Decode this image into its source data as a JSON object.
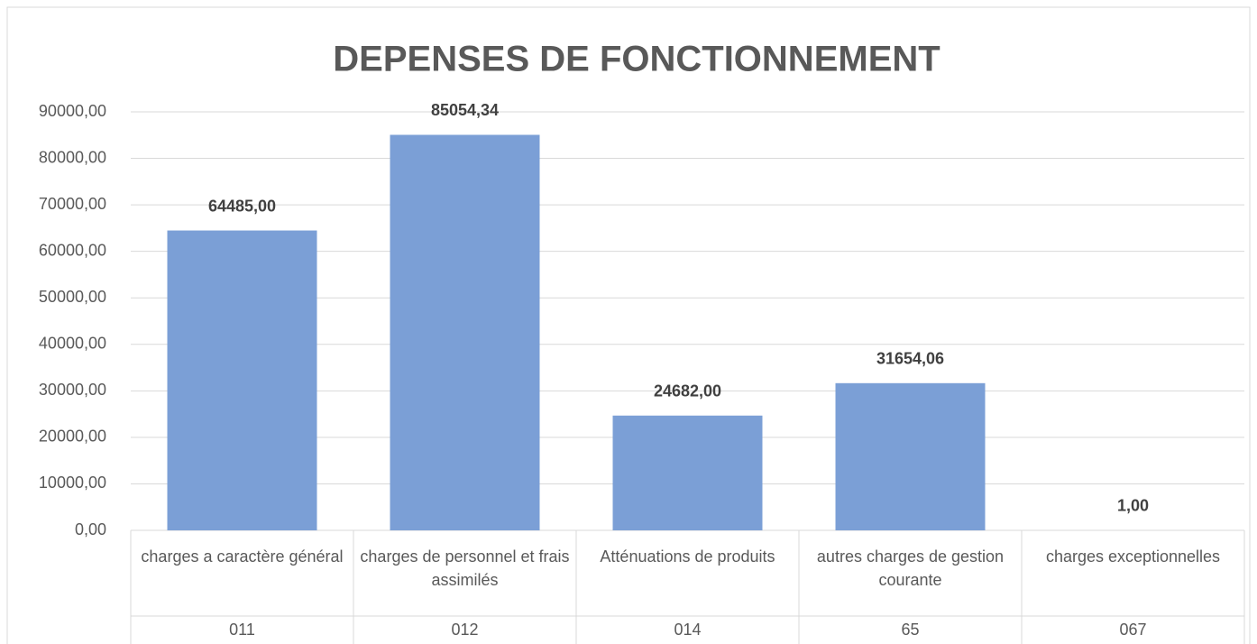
{
  "chart_data": {
    "type": "bar",
    "title": "DEPENSES DE FONCTIONNEMENT",
    "categories": [
      "charges a caractère général",
      "charges de personnel et frais assimilés",
      "Atténuations de produits",
      "autres charges de gestion courante",
      "charges exceptionnelles"
    ],
    "category_codes": [
      "011",
      "012",
      "014",
      "65",
      "067"
    ],
    "values": [
      64485,
      85054.34,
      24682,
      31654.06,
      1
    ],
    "value_labels": [
      "64485,00",
      "85054,34",
      "24682,00",
      "31654,06",
      "1,00"
    ],
    "color": "#7b9fd6",
    "ylim": [
      0,
      90000
    ],
    "yticks": [
      {
        "value": 0,
        "label": "0,00"
      },
      {
        "value": 10000,
        "label": "10000,00"
      },
      {
        "value": 20000,
        "label": "20000,00"
      },
      {
        "value": 30000,
        "label": "30000,00"
      },
      {
        "value": 40000,
        "label": "40000,00"
      },
      {
        "value": 50000,
        "label": "50000,00"
      },
      {
        "value": 60000,
        "label": "60000,00"
      },
      {
        "value": 70000,
        "label": "70000,00"
      },
      {
        "value": 80000,
        "label": "80000,00"
      },
      {
        "value": 90000,
        "label": "90000,00"
      }
    ],
    "grid": true
  }
}
